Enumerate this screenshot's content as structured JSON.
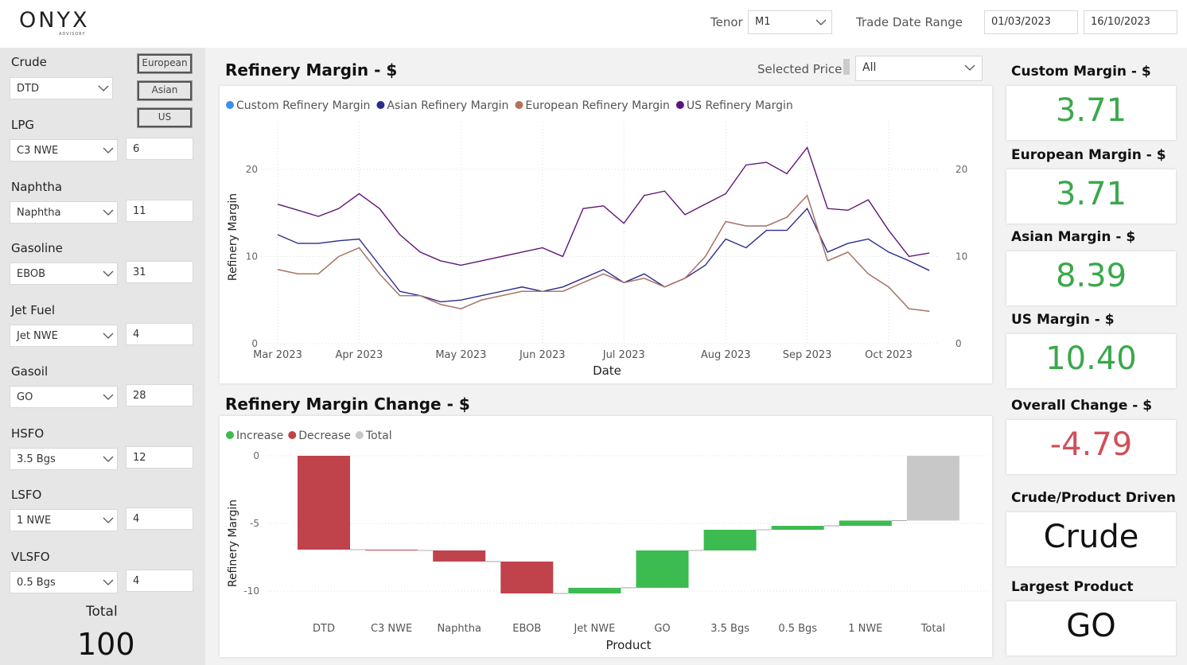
{
  "header": {
    "logo": "ONYX",
    "logo_sub": "ADVISORY",
    "tenor_label": "Tenor",
    "tenor": "M1",
    "date_range_label": "Trade Date Range",
    "date_from": "01/03/2023",
    "date_to": "16/10/2023"
  },
  "sidebar": {
    "crude": {
      "label": "Crude",
      "value": "DTD",
      "buttons": [
        "European",
        "Asian",
        "US"
      ]
    },
    "products": [
      {
        "label": "LPG",
        "value": "C3 NWE",
        "weight": 6
      },
      {
        "label": "Naphtha",
        "value": "Naphtha",
        "weight": 11
      },
      {
        "label": "Gasoline",
        "value": "EBOB",
        "weight": 31
      },
      {
        "label": "Jet Fuel",
        "value": "Jet NWE",
        "weight": 4
      },
      {
        "label": "Gasoil",
        "value": "GO",
        "weight": 28
      },
      {
        "label": "HSFO",
        "value": "3.5 Bgs",
        "weight": 12
      },
      {
        "label": "LSFO",
        "value": "1 NWE",
        "weight": 4
      },
      {
        "label": "VLSFO",
        "value": "0.5 Bgs",
        "weight": 4
      }
    ],
    "total_label": "Total",
    "total": 100
  },
  "selected_price": {
    "label": "Selected Price",
    "value": "All"
  },
  "chart_data": [
    {
      "type": "line",
      "title": "Refinery Margin - $",
      "x_label": "Date",
      "y_label": "Refinery Margin",
      "categories": [
        "Mar 2023",
        null,
        null,
        null,
        "Apr 2023",
        null,
        null,
        null,
        null,
        "May 2023",
        null,
        null,
        null,
        "Jun 2023",
        null,
        null,
        null,
        "Jul 2023",
        null,
        null,
        null,
        null,
        "Aug 2023",
        null,
        null,
        null,
        "Sep 2023",
        null,
        null,
        null,
        "Oct 2023",
        null,
        null
      ],
      "series": [
        {
          "name": "Custom Refinery Margin",
          "color": "#3a8fe8",
          "values": [
            8.5,
            8,
            8,
            10,
            11,
            8,
            5.5,
            5.5,
            4.5,
            4,
            5,
            5.5,
            6,
            6,
            6,
            7,
            8,
            7,
            7.5,
            6.5,
            7.5,
            10,
            14,
            13.5,
            13.5,
            14.5,
            17,
            9.5,
            10.5,
            8,
            6.5,
            4,
            3.71
          ]
        },
        {
          "name": "Asian Refinery Margin",
          "color": "#2b2b8c",
          "values": [
            12.5,
            11.5,
            11.5,
            11.8,
            12,
            9,
            6,
            5.5,
            4.8,
            5,
            5.5,
            6,
            6.5,
            6,
            6.5,
            7.5,
            8.5,
            7,
            8,
            6.5,
            7.5,
            9,
            12,
            11,
            13,
            13,
            15.5,
            10.5,
            11.5,
            12,
            10.5,
            9.5,
            8.39
          ]
        },
        {
          "name": "European Refinery Margin",
          "color": "#b5735c",
          "values": [
            8.5,
            8,
            8,
            10,
            11,
            8,
            5.5,
            5.5,
            4.5,
            4,
            5,
            5.5,
            6,
            6,
            6,
            7,
            8,
            7,
            7.5,
            6.5,
            7.5,
            10,
            14,
            13.5,
            13.5,
            14.5,
            17,
            9.5,
            10.5,
            8,
            6.5,
            4,
            3.71
          ]
        },
        {
          "name": "US Refinery Margin",
          "color": "#5e1675",
          "values": [
            16,
            15.3,
            14.6,
            15.5,
            17.2,
            15.5,
            12.5,
            10.5,
            9.5,
            9,
            9.5,
            10,
            10.5,
            11,
            10,
            15.5,
            15.8,
            13.8,
            17,
            17.5,
            14.8,
            16,
            17.2,
            20.5,
            20.8,
            19.5,
            22.5,
            15.5,
            15.3,
            16.5,
            13,
            10,
            10.4
          ]
        }
      ],
      "ylim": [
        0,
        24
      ],
      "yticks": [
        0,
        10,
        20
      ],
      "y2lim": [
        0,
        24
      ],
      "y2ticks": [
        0,
        10,
        20
      ],
      "grid": true,
      "legend": "top-left"
    },
    {
      "type": "waterfall",
      "title": "Refinery Margin Change - $",
      "x_label": "Product",
      "y_label": "Refinery Margin",
      "categories": [
        "DTD",
        "C3 NWE",
        "Naphtha",
        "EBOB",
        "Jet NWE",
        "GO",
        "3.5 Bgs",
        "0.5 Bgs",
        "1 NWE",
        "Total"
      ],
      "values": [
        -6.94,
        -0.06,
        -0.82,
        -2.36,
        0.42,
        2.76,
        1.53,
        0.29,
        0.39,
        -4.79
      ],
      "legend": [
        "Increase",
        "Decrease",
        "Total"
      ],
      "colors": [
        "#3cbb50",
        "#c0424b",
        "#c8c8c8"
      ],
      "ylim": [
        -10.5,
        0
      ],
      "yticks": [
        0,
        -5,
        -10
      ],
      "grid": true
    }
  ],
  "kpis": [
    {
      "title": "Custom Margin - $",
      "value": "3.71",
      "color": "#3aa84a"
    },
    {
      "title": "European Margin - $",
      "value": "3.71",
      "color": "#3aa84a"
    },
    {
      "title": "Asian Margin - $",
      "value": "8.39",
      "color": "#3aa84a"
    },
    {
      "title": "US Margin - $",
      "value": "10.40",
      "color": "#3aa84a"
    },
    {
      "title": "Overall Change - $",
      "value": "-4.79",
      "color": "#d0505a"
    },
    {
      "title": "Crude/Product Driven",
      "value": "Crude",
      "color": "#111"
    },
    {
      "title": "Largest Product",
      "value": "GO",
      "color": "#111"
    }
  ]
}
